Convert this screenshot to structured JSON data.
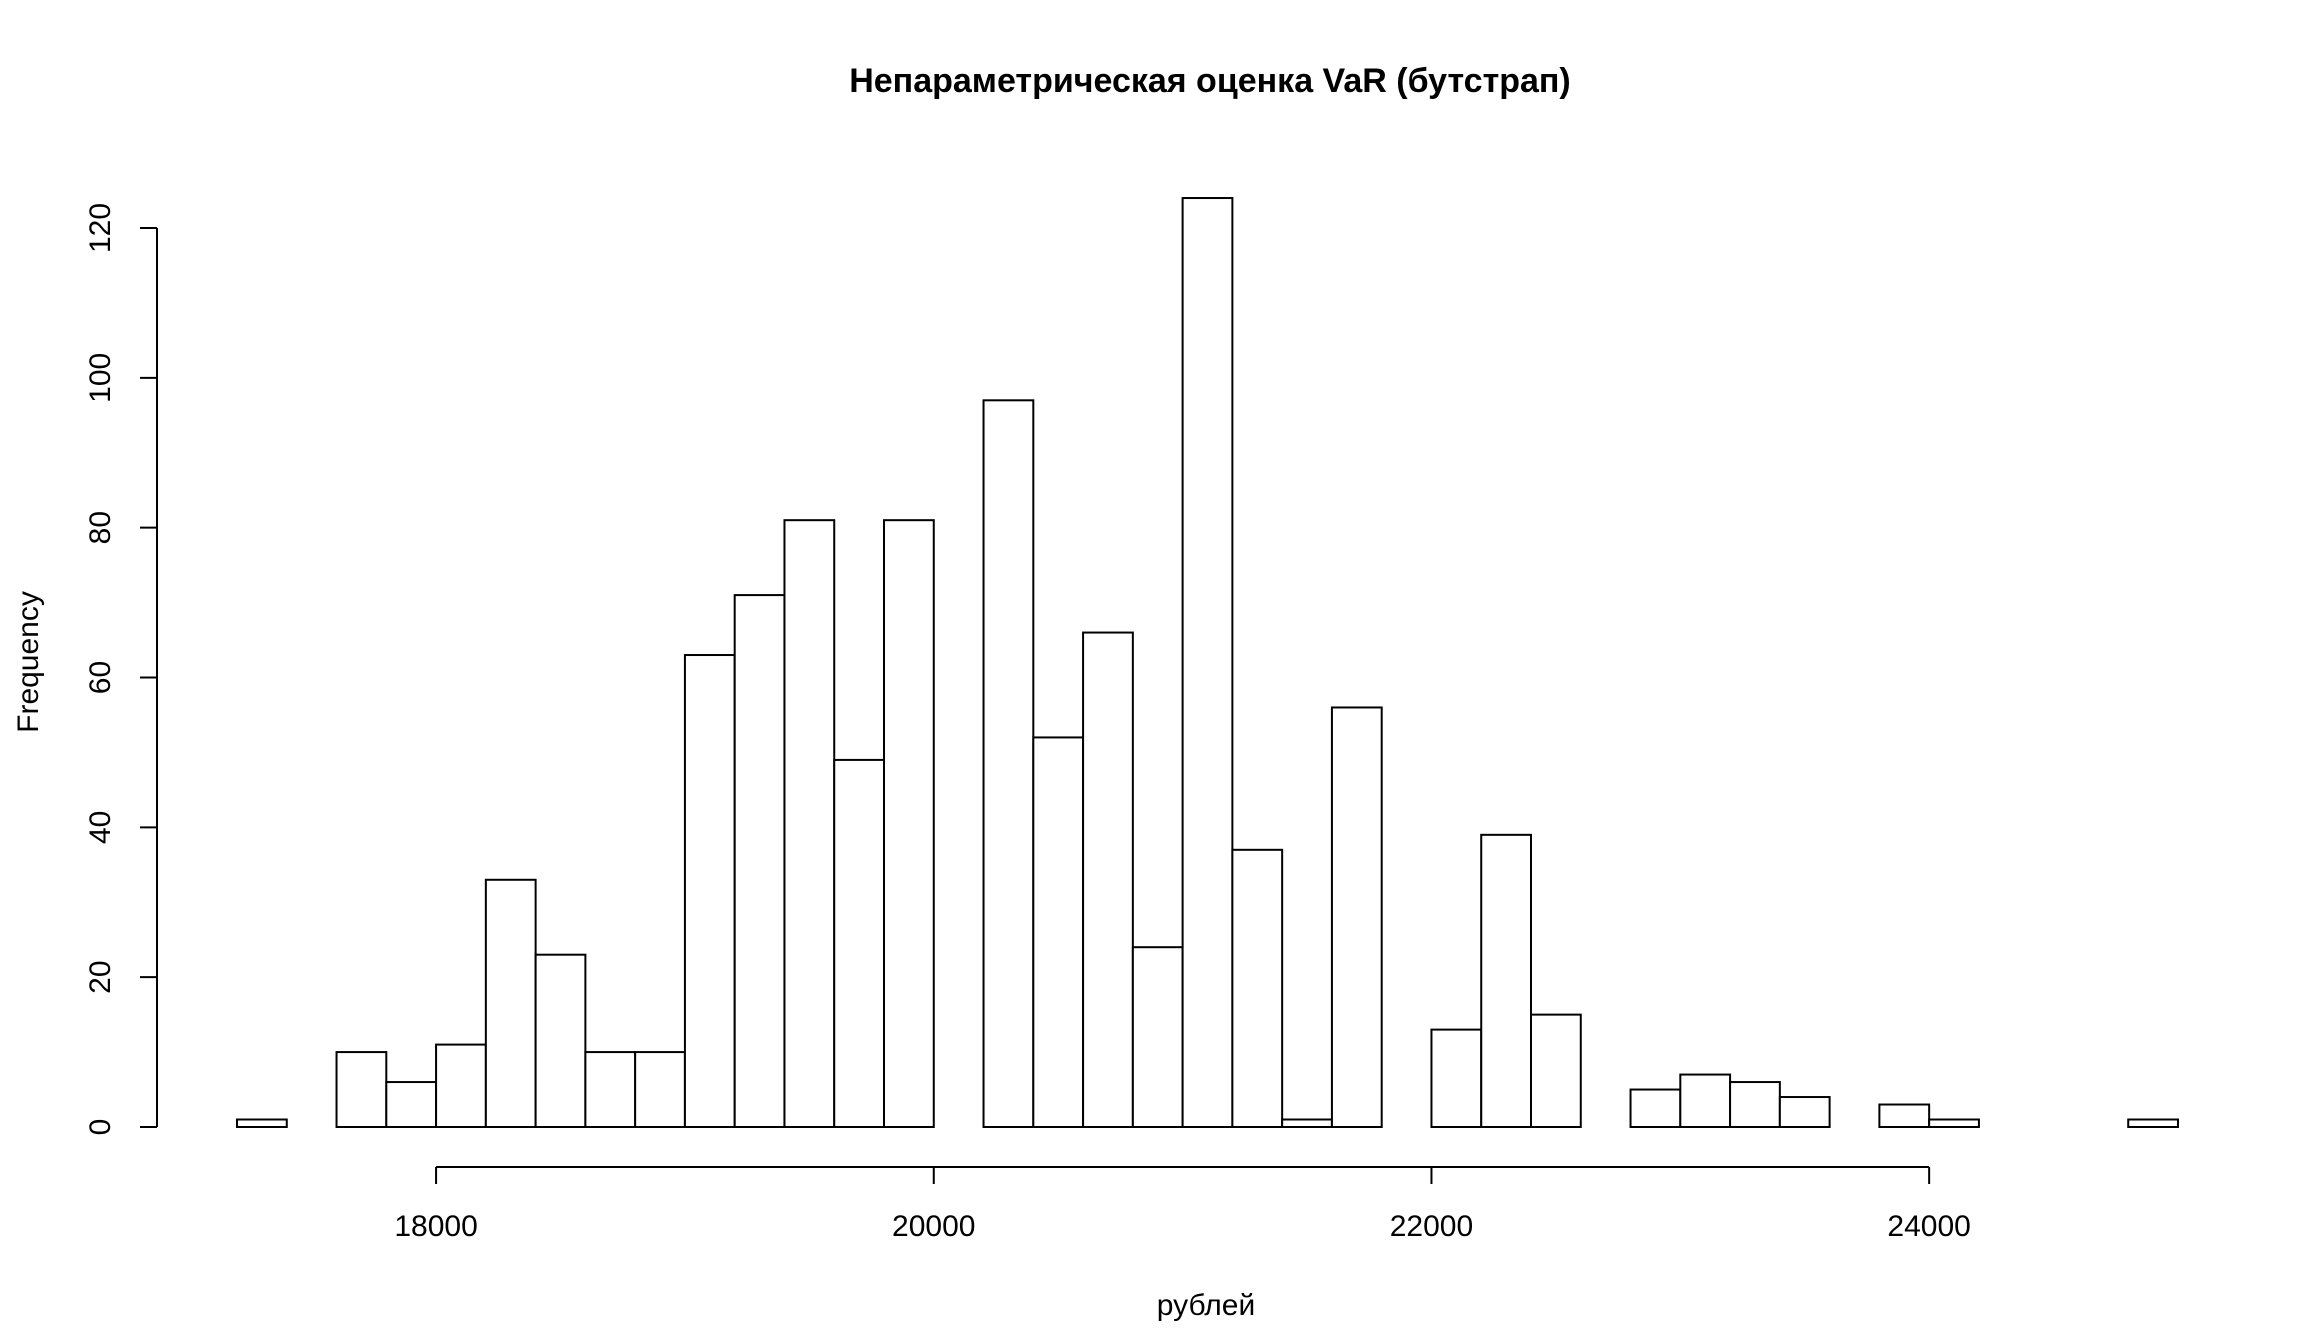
{
  "chart_data": {
    "type": "bar",
    "title": "Непараметрическая оценка VaR (бутстрап)",
    "xlabel": "рублей",
    "ylabel": "Frequency",
    "xlim": [
      17200,
      25000
    ],
    "ylim": [
      0,
      124
    ],
    "x_ticks": [
      18000,
      20000,
      22000,
      24000
    ],
    "y_ticks": [
      0,
      20,
      40,
      60,
      80,
      100,
      120
    ],
    "bin_width": 200,
    "bin_start": 17200,
    "values": [
      1,
      0,
      10,
      6,
      11,
      33,
      23,
      10,
      10,
      63,
      71,
      81,
      49,
      81,
      0,
      97,
      52,
      66,
      24,
      124,
      37,
      1,
      56,
      0,
      13,
      39,
      15,
      0,
      5,
      7,
      6,
      4,
      0,
      3,
      1,
      0,
      0,
      0,
      1
    ],
    "grid": false,
    "legend": "none"
  }
}
